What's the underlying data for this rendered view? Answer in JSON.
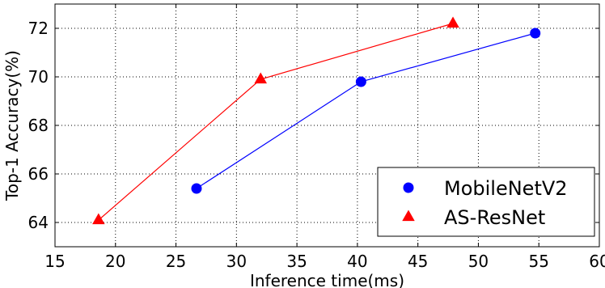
{
  "chart_data": {
    "type": "line",
    "title": "",
    "xlabel": "Inference time(ms)",
    "ylabel": "Top-1 Accuracy(%)",
    "xlim": [
      15,
      60
    ],
    "ylim": [
      63,
      73
    ],
    "xticks": [
      15,
      20,
      25,
      30,
      35,
      40,
      45,
      50,
      55,
      60
    ],
    "yticks": [
      64,
      66,
      68,
      70,
      72
    ],
    "grid": true,
    "grid_style": "dotted",
    "legend_position": "lower-right",
    "series": [
      {
        "name": "MobileNetV2",
        "color": "#0000ff",
        "marker": "circle",
        "points": [
          {
            "x": 26.7,
            "y": 65.4
          },
          {
            "x": 40.3,
            "y": 69.8
          },
          {
            "x": 54.7,
            "y": 71.8
          }
        ]
      },
      {
        "name": "AS-ResNet",
        "color": "#ff0000",
        "marker": "triangle",
        "points": [
          {
            "x": 18.6,
            "y": 64.1
          },
          {
            "x": 32.0,
            "y": 69.9
          },
          {
            "x": 47.9,
            "y": 72.2
          }
        ]
      }
    ]
  }
}
